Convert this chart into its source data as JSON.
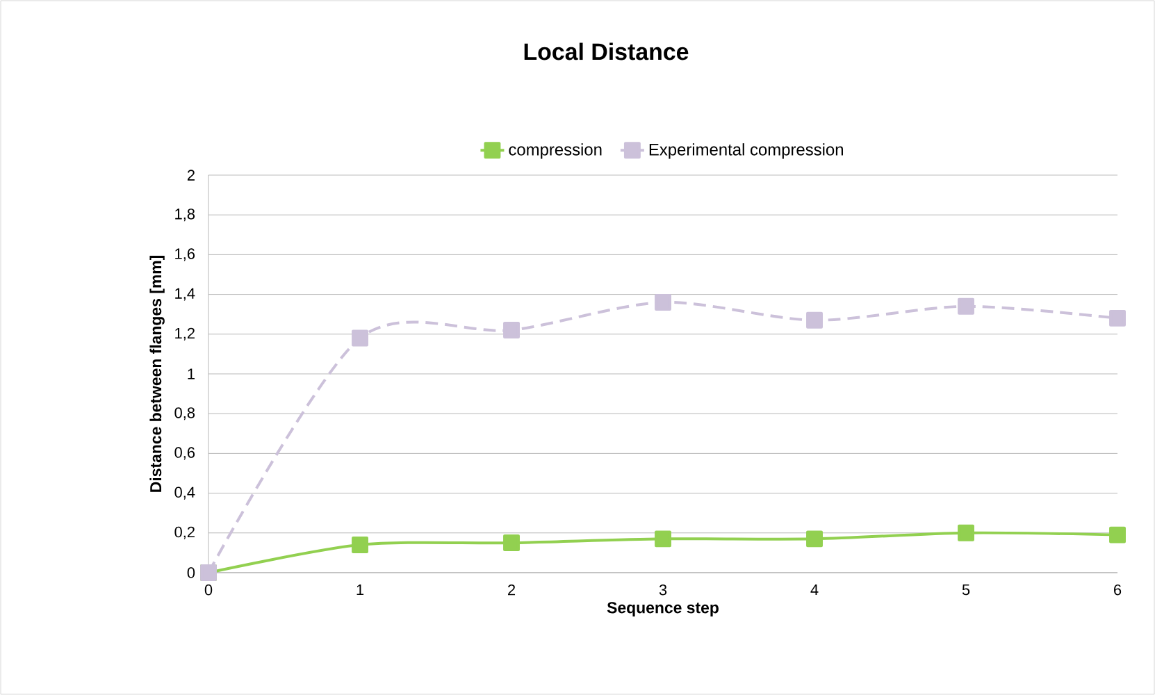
{
  "chart_data": {
    "type": "line",
    "title": "Local Distance",
    "xlabel": "Sequence step",
    "ylabel": "Distance between flanges [mm]",
    "x": [
      0,
      1,
      2,
      3,
      4,
      5,
      6
    ],
    "series": [
      {
        "name": "compression",
        "color": "#92d050",
        "line_style": "solid",
        "values": [
          0,
          0.14,
          0.15,
          0.17,
          0.17,
          0.2,
          0.19
        ]
      },
      {
        "name": "Experimental compression",
        "color": "#ccc1da",
        "line_style": "dashed",
        "values": [
          0,
          1.18,
          1.22,
          1.36,
          1.27,
          1.34,
          1.28
        ]
      }
    ],
    "marker": "square",
    "grid": "y",
    "legend": "top",
    "xlim": [
      0,
      6
    ],
    "xticks": [
      0,
      1,
      2,
      3,
      4,
      5,
      6
    ],
    "ylim": [
      0,
      2
    ],
    "yticks": [
      0,
      {
        "value": 0.2,
        "label": "0,2"
      },
      {
        "value": 0.4,
        "label": "0,4"
      },
      {
        "value": 0.6,
        "label": "0,6"
      },
      {
        "value": 0.8,
        "label": "0,8"
      },
      1,
      {
        "value": 1.2,
        "label": "1,2"
      },
      {
        "value": 1.4,
        "label": "1,4"
      },
      {
        "value": 1.6,
        "label": "1,6"
      },
      {
        "value": 1.8,
        "label": "1,8"
      },
      2
    ]
  }
}
